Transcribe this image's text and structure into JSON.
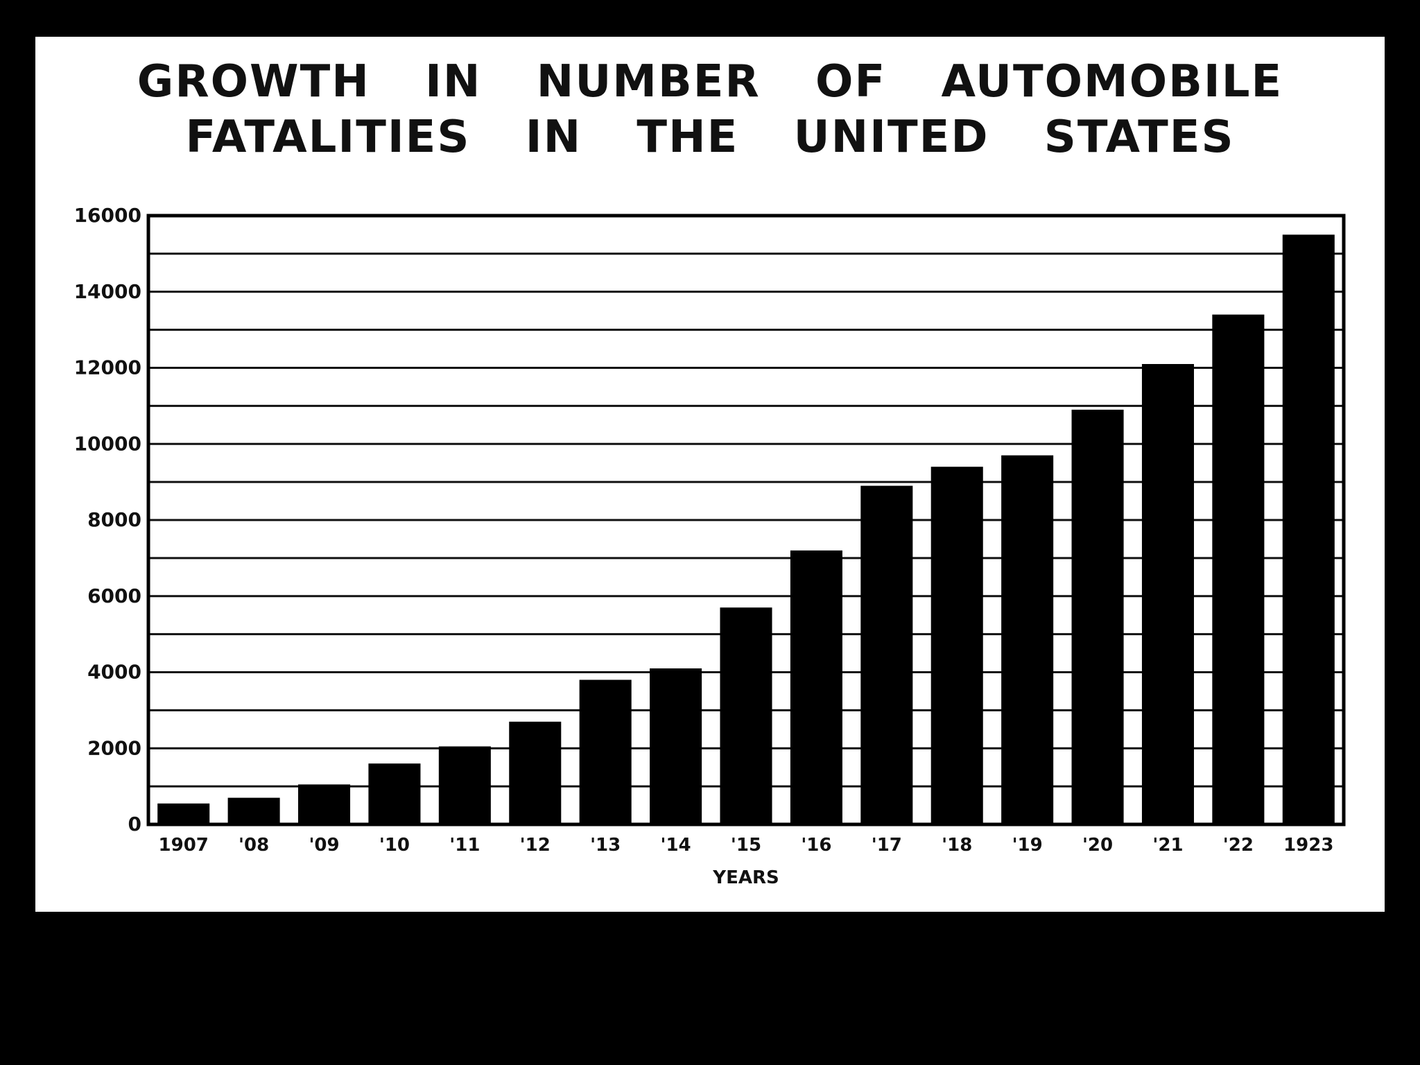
{
  "chart_data": {
    "type": "bar",
    "title_lines": [
      "GROWTH IN NUMBER OF AUTOMOBILE",
      "FATALITIES IN THE UNITED STATES"
    ],
    "xlabel": "YEARS",
    "ylabel": "",
    "categories": [
      "1907",
      "'08",
      "'09",
      "'10",
      "'11",
      "'12",
      "'13",
      "'14",
      "'15",
      "'16",
      "'17",
      "'18",
      "'19",
      "'20",
      "'21",
      "'22",
      "1923"
    ],
    "values": [
      550,
      700,
      1050,
      1600,
      2050,
      2700,
      3800,
      4100,
      5700,
      7200,
      8900,
      9400,
      9700,
      10900,
      12100,
      13400,
      15500
    ],
    "ylim": [
      0,
      16000
    ],
    "yticks": [
      0,
      2000,
      4000,
      6000,
      8000,
      10000,
      12000,
      14000,
      16000
    ],
    "ytick_labels": [
      "0",
      "2000",
      "4000",
      "6000",
      "8000",
      "10000",
      "12000",
      "14000",
      "16000"
    ],
    "grid": true,
    "grid_step": 1000,
    "legend": "none",
    "bar_color": "#000000"
  }
}
